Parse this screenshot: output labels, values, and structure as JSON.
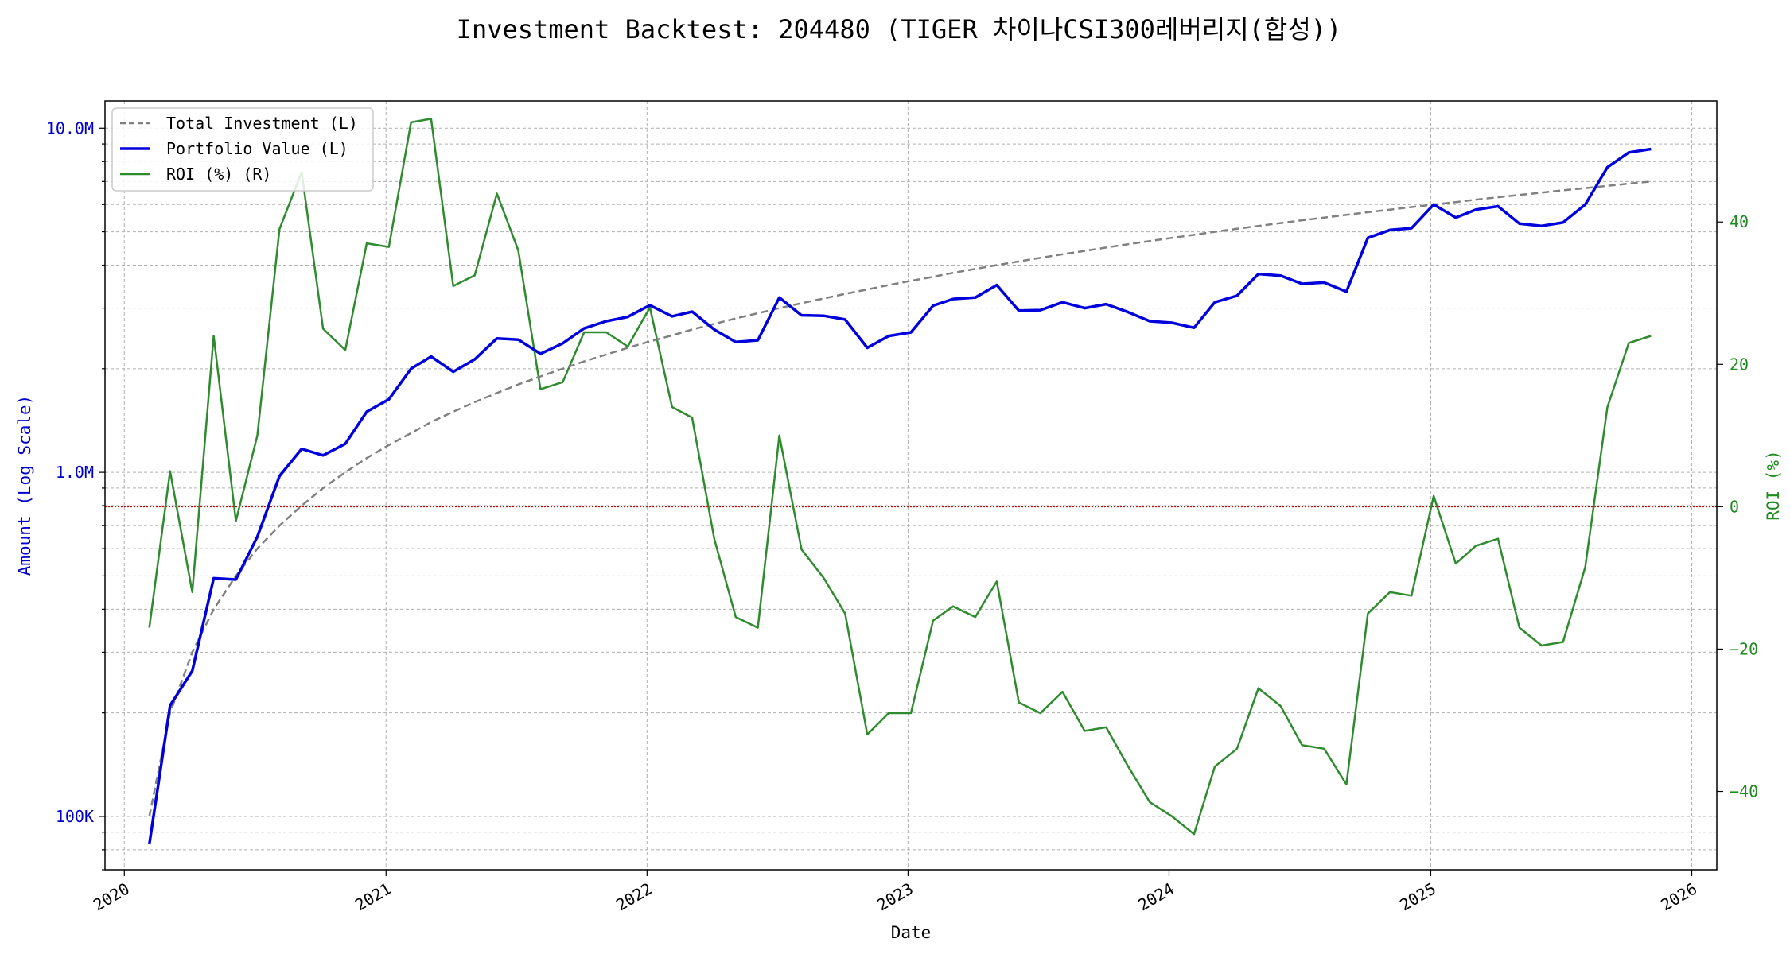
{
  "chart_data": {
    "type": "line",
    "title": "Investment Backtest: 204480 (TIGER 차이나CSI300레버리지(합성))",
    "xlabel": "Date",
    "ylabel_left": "Amount (Log Scale)",
    "ylabel_right": "ROI (%)",
    "x_tick_labels": [
      "2020",
      "2021",
      "2022",
      "2023",
      "2024",
      "2025",
      "2026"
    ],
    "y_left_scale": "log",
    "y_left_ticks": [
      {
        "value": 100000,
        "label": "100K"
      },
      {
        "value": 1000000,
        "label": "1.0M"
      },
      {
        "value": 10000000,
        "label": "10.0M"
      }
    ],
    "y_left_range": [
      70000,
      12000000
    ],
    "y_right_ticks": [
      -40,
      -20,
      0,
      20,
      40
    ],
    "y_right_range": [
      -51,
      57
    ],
    "x_range": [
      "2019-12-05",
      "2026-02-05"
    ],
    "grid": true,
    "legend_placement": "upper-left",
    "reference_line": {
      "axis": "right",
      "value": 0,
      "color": "#cc0000",
      "style": "dotted"
    },
    "colors": {
      "total_investment": "#808080",
      "portfolio_value": "#0000dd",
      "roi": "#2e8b2e",
      "left_axis": "#0000cc",
      "right_axis": "#1f8b1f"
    },
    "x": [
      "2020-02-05",
      "2020-03-05",
      "2020-04-05",
      "2020-05-05",
      "2020-06-05",
      "2020-07-05",
      "2020-08-05",
      "2020-09-05",
      "2020-10-05",
      "2020-11-05",
      "2020-12-05",
      "2021-01-05",
      "2021-02-05",
      "2021-03-05",
      "2021-04-05",
      "2021-05-05",
      "2021-06-05",
      "2021-07-05",
      "2021-08-05",
      "2021-09-05",
      "2021-10-05",
      "2021-11-05",
      "2021-12-05",
      "2022-01-05",
      "2022-02-05",
      "2022-03-05",
      "2022-04-05",
      "2022-05-05",
      "2022-06-05",
      "2022-07-05",
      "2022-08-05",
      "2022-09-05",
      "2022-10-05",
      "2022-11-05",
      "2022-12-05",
      "2023-01-05",
      "2023-02-05",
      "2023-03-05",
      "2023-04-05",
      "2023-05-05",
      "2023-06-05",
      "2023-07-05",
      "2023-08-05",
      "2023-09-05",
      "2023-10-05",
      "2023-11-05",
      "2023-12-05",
      "2024-01-05",
      "2024-02-05",
      "2024-03-05",
      "2024-04-05",
      "2024-05-05",
      "2024-06-05",
      "2024-07-05",
      "2024-08-05",
      "2024-09-05",
      "2024-10-05",
      "2024-11-05",
      "2024-12-05",
      "2025-01-05",
      "2025-02-05",
      "2025-03-05",
      "2025-04-05",
      "2025-05-05",
      "2025-06-05",
      "2025-07-05",
      "2025-08-05",
      "2025-09-05",
      "2025-10-05",
      "2025-11-05"
    ],
    "series": [
      {
        "name": "Total Investment (L)",
        "axis": "left",
        "style": "dashed",
        "values": [
          100000,
          200000,
          300000,
          400000,
          500000,
          600000,
          700000,
          800000,
          900000,
          1000000,
          1100000,
          1200000,
          1300000,
          1400000,
          1500000,
          1600000,
          1700000,
          1800000,
          1900000,
          2000000,
          2100000,
          2200000,
          2300000,
          2400000,
          2500000,
          2600000,
          2700000,
          2800000,
          2900000,
          3000000,
          3100000,
          3200000,
          3300000,
          3400000,
          3500000,
          3600000,
          3700000,
          3800000,
          3900000,
          4000000,
          4100000,
          4200000,
          4300000,
          4400000,
          4500000,
          4600000,
          4700000,
          4800000,
          4900000,
          5000000,
          5100000,
          5200000,
          5300000,
          5400000,
          5500000,
          5600000,
          5700000,
          5800000,
          5900000,
          6000000,
          6100000,
          6200000,
          6300000,
          6400000,
          6500000,
          6600000,
          6700000,
          6800000,
          6900000,
          7000000
        ]
      },
      {
        "name": "Portfolio Value (L)",
        "axis": "left",
        "style": "solid",
        "values": [
          83000,
          210000,
          265000,
          492000,
          488000,
          650000,
          975000,
          1170000,
          1120000,
          1210000,
          1500000,
          1630000,
          2000000,
          2170000,
          1960000,
          2130000,
          2450000,
          2430000,
          2210000,
          2370000,
          2620000,
          2750000,
          2830000,
          3060000,
          2840000,
          2930000,
          2600000,
          2390000,
          2420000,
          3220000,
          2860000,
          2850000,
          2780000,
          2300000,
          2490000,
          2550000,
          3050000,
          3190000,
          3220000,
          3500000,
          2950000,
          2960000,
          3120000,
          3000000,
          3080000,
          2920000,
          2750000,
          2720000,
          2630000,
          3120000,
          3260000,
          3770000,
          3730000,
          3530000,
          3560000,
          3350000,
          4800000,
          5060000,
          5120000,
          6000000,
          5500000,
          5800000,
          5930000,
          5280000,
          5200000,
          5320000,
          6000000,
          7700000,
          8500000,
          8700000
        ]
      },
      {
        "name": "ROI (%) (R)",
        "axis": "right",
        "style": "solid",
        "values": [
          -17,
          5,
          -12,
          24,
          -2,
          10,
          39,
          47,
          25,
          22,
          37,
          36.5,
          54,
          54.5,
          31,
          32.5,
          44,
          36,
          16.5,
          17.5,
          24.5,
          24.5,
          22.5,
          28,
          14,
          12.5,
          -4.5,
          -15.5,
          -17,
          10,
          -6,
          -10,
          -15,
          -32,
          -29,
          -29,
          -16,
          -14,
          -15.5,
          -10.5,
          -27.5,
          -29,
          -26,
          -31.5,
          -31,
          -36.5,
          -41.5,
          -43.5,
          -46,
          -36.5,
          -34,
          -25.5,
          -28,
          -33.5,
          -34,
          -39,
          -15,
          -12,
          -12.5,
          1.5,
          -8,
          -5.5,
          -4.5,
          -17,
          -19.5,
          -19,
          -8.5,
          14,
          23,
          24
        ]
      }
    ]
  }
}
